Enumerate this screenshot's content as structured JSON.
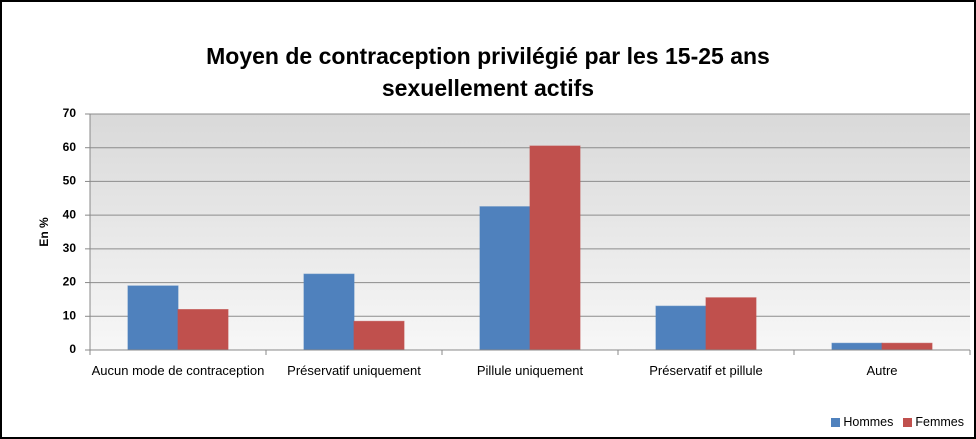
{
  "chart_data": {
    "type": "bar",
    "title": "Moyen de contraception privilégié par les 15-25 ans sexuellement actifs",
    "y_label": "En %",
    "categories": [
      "Aucun mode de contraception",
      "Préservatif uniquement",
      "Pillule uniquement",
      "Préservatif et pillule",
      "Autre"
    ],
    "series": [
      {
        "name": "Hommes",
        "color": "#4f81bd",
        "values": [
          19,
          22.5,
          42.5,
          13,
          2
        ]
      },
      {
        "name": "Femmes",
        "color": "#c0504d",
        "values": [
          12,
          8.5,
          60.5,
          15.5,
          2
        ]
      }
    ],
    "ylim": [
      0,
      70
    ],
    "yticks": [
      0,
      10,
      20,
      30,
      40,
      50,
      60,
      70
    ],
    "grid": true,
    "legend": "bottom-right"
  }
}
